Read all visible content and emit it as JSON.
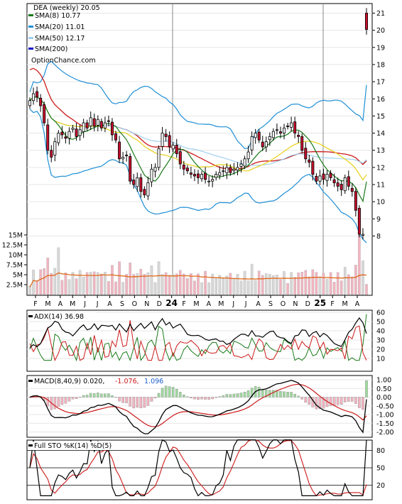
{
  "colors": {
    "sma8": "#1a7a1a",
    "sma20": "#1f8fd6",
    "sma50": "#9fd0ef",
    "sma200": "#1a1acc",
    "sma_long": "#cc1a1a",
    "candle_up": "#ffffff",
    "candle_down": "#c8102e",
    "volume_up": "#d8d8d8",
    "volume_down": "#f3b4c0",
    "volume_avg": "#e06a1a",
    "adx": "#000000",
    "di_plus": "#1a7a1a",
    "di_minus": "#cc1a1a",
    "macd": "#000000",
    "signal": "#cc1a1a",
    "hist_pos": "#9fd89f",
    "hist_neg": "#f3b4c0",
    "macd_val2": "#cc1a1a",
    "macd_val3": "#1a5fcc",
    "sto_k": "#000000",
    "sto_d": "#cc1a1a"
  },
  "legend": {
    "title": "DEA (weekly) 20.05",
    "sma8": "SMA(8) 10.77",
    "sma20": "SMA(20) 11.01",
    "sma50": "SMA(50) 12.17",
    "sma200": "SMA(200)",
    "source": "OptionChance.com"
  },
  "price_axis": [
    "21",
    "20",
    "19",
    "18",
    "17",
    "16",
    "15",
    "14",
    "13",
    "12",
    "11",
    "10",
    "9",
    "8"
  ],
  "volume_axis": [
    "15M",
    "12.5M",
    "10M",
    "7.5M",
    "5M",
    "2.5M"
  ],
  "x_axis": [
    "F",
    "M",
    "A",
    "M",
    "J",
    "J",
    "A",
    "S",
    "O",
    "N",
    "D",
    "24",
    "F",
    "M",
    "A",
    "M",
    "J",
    "J",
    "A",
    "S",
    "O",
    "N",
    "D",
    "25",
    "F",
    "M",
    "A"
  ],
  "adx_panel": {
    "label": "ADX(14) 36.98",
    "axis": [
      "60",
      "50",
      "40",
      "30",
      "20",
      "10"
    ]
  },
  "macd_panel": {
    "label": "MACD(8,40,9) 0.020,",
    "value2": "-1.076,",
    "value3": "1.096",
    "axis": [
      "1.00",
      "0.50",
      "0.00",
      "-0.50",
      "-1.00",
      "-1.50",
      "-2.00"
    ]
  },
  "sto_panel": {
    "label": "Full STO %K(14) %D(5)",
    "axis": [
      "80",
      "50",
      "20"
    ]
  },
  "chart_data": {
    "type": "candlestick",
    "title": "DEA (weekly) 20.05",
    "price_range": [
      7.5,
      21.3
    ],
    "closes": [
      15.9,
      16.3,
      16.1,
      15.6,
      14.6,
      13.0,
      12.6,
      13.5,
      14.0,
      13.9,
      13.7,
      14.1,
      14.3,
      13.8,
      14.2,
      14.6,
      14.3,
      14.9,
      14.4,
      14.8,
      14.3,
      14.6,
      14.7,
      13.9,
      13.6,
      12.5,
      12.6,
      12.7,
      11.2,
      11.0,
      11.4,
      10.6,
      10.4,
      11.1,
      11.9,
      12.0,
      13.1,
      14.0,
      13.8,
      13.2,
      13.3,
      12.8,
      12.2,
      11.9,
      11.8,
      11.6,
      11.5,
      11.4,
      11.6,
      11.3,
      11.2,
      11.3,
      11.6,
      11.7,
      11.8,
      12.0,
      11.7,
      11.9,
      12.0,
      12.2,
      12.5,
      12.9,
      13.8,
      14.0,
      13.6,
      13.2,
      13.5,
      13.8,
      14.1,
      14.2,
      14.0,
      14.3,
      14.4,
      14.6,
      14.0,
      13.8,
      13.0,
      12.5,
      12.3,
      11.6,
      11.2,
      11.5,
      11.3,
      11.6,
      11.4,
      11.1,
      10.9,
      10.7,
      11.4,
      10.9,
      10.6,
      9.5,
      8.1,
      8.1,
      20.05
    ],
    "sma20_last": 11.01,
    "sma8_last": 10.77,
    "sma50_last": 12.17
  }
}
